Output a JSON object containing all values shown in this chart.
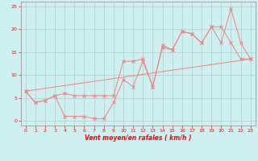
{
  "xlabel": "Vent moyen/en rafales ( km/h )",
  "bg_color": "#cff0f0",
  "grid_color": "#aacccc",
  "line_color": "#f08080",
  "xlim": [
    -0.5,
    23.5
  ],
  "ylim": [
    -1,
    26
  ],
  "x_ticks": [
    0,
    1,
    2,
    3,
    4,
    5,
    6,
    7,
    8,
    9,
    10,
    11,
    12,
    13,
    14,
    15,
    16,
    17,
    18,
    19,
    20,
    21,
    22,
    23
  ],
  "y_ticks": [
    0,
    5,
    10,
    15,
    20,
    25
  ],
  "line1_x": [
    0,
    1,
    2,
    3,
    4,
    5,
    6,
    7,
    8,
    9,
    10,
    11,
    12,
    13,
    14,
    15,
    16,
    17,
    18,
    19,
    20,
    21,
    22,
    23
  ],
  "line1_y": [
    6.5,
    4.0,
    4.5,
    5.5,
    6.0,
    5.5,
    5.5,
    5.5,
    5.5,
    5.5,
    13.0,
    13.0,
    13.5,
    7.5,
    16.0,
    15.5,
    19.5,
    19.0,
    17.0,
    20.5,
    20.5,
    17.0,
    13.5,
    13.5
  ],
  "line2_x": [
    0,
    1,
    2,
    3,
    4,
    5,
    6,
    7,
    8,
    9,
    10,
    11,
    12,
    13,
    14,
    15,
    16,
    17,
    18,
    19,
    20,
    21,
    22,
    23
  ],
  "line2_y": [
    6.5,
    4.0,
    4.5,
    5.5,
    1.0,
    1.0,
    1.0,
    0.5,
    0.5,
    4.0,
    9.0,
    7.5,
    13.0,
    7.5,
    16.5,
    15.5,
    19.5,
    19.0,
    17.0,
    20.5,
    17.0,
    24.5,
    17.0,
    13.5
  ],
  "line3_x": [
    0,
    23
  ],
  "line3_y": [
    6.5,
    13.5
  ]
}
